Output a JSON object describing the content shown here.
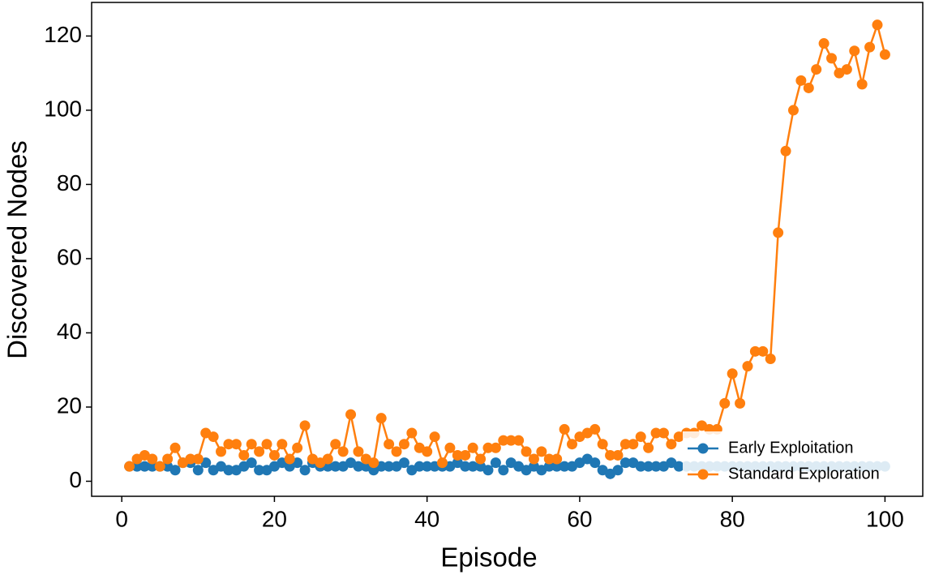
{
  "chart_data": {
    "type": "line",
    "x_label": "Episode",
    "y_label": "Discovered Nodes",
    "x": [
      1,
      2,
      3,
      4,
      5,
      6,
      7,
      8,
      9,
      10,
      11,
      12,
      13,
      14,
      15,
      16,
      17,
      18,
      19,
      20,
      21,
      22,
      23,
      24,
      25,
      26,
      27,
      28,
      29,
      30,
      31,
      32,
      33,
      34,
      35,
      36,
      37,
      38,
      39,
      40,
      41,
      42,
      43,
      44,
      45,
      46,
      47,
      48,
      49,
      50,
      51,
      52,
      53,
      54,
      55,
      56,
      57,
      58,
      59,
      60,
      61,
      62,
      63,
      64,
      65,
      66,
      67,
      68,
      69,
      70,
      71,
      72,
      73,
      74,
      75,
      76,
      77,
      78,
      79,
      80,
      81,
      82,
      83,
      84,
      85,
      86,
      87,
      88,
      89,
      90,
      91,
      92,
      93,
      94,
      95,
      96,
      97,
      98,
      99,
      100
    ],
    "series": [
      {
        "name": "Early Exploitation",
        "color": "#1f77b4",
        "values": [
          4,
          4,
          4,
          4,
          4,
          4,
          3,
          5,
          5,
          3,
          5,
          3,
          4,
          3,
          3,
          4,
          5,
          3,
          3,
          4,
          5,
          4,
          5,
          3,
          5,
          4,
          4,
          4,
          4,
          5,
          4,
          4,
          3,
          4,
          4,
          4,
          5,
          3,
          4,
          4,
          4,
          4,
          4,
          5,
          4,
          4,
          4,
          3,
          5,
          3,
          5,
          4,
          3,
          4,
          3,
          4,
          4,
          4,
          4,
          5,
          6,
          5,
          3,
          2,
          3,
          5,
          5,
          4,
          4,
          4,
          4,
          5,
          4,
          4,
          4,
          4,
          4,
          4,
          4,
          4,
          4,
          4,
          4,
          4,
          4,
          4,
          4,
          4,
          4,
          4,
          4,
          4,
          4,
          4,
          4,
          4,
          4,
          4,
          4,
          4
        ]
      },
      {
        "name": "Standard Exploration",
        "color": "#ff7f0e",
        "values": [
          4,
          6,
          7,
          6,
          4,
          6,
          9,
          5,
          6,
          6,
          13,
          12,
          8,
          10,
          10,
          7,
          10,
          8,
          10,
          7,
          10,
          6,
          9,
          15,
          6,
          5,
          6,
          10,
          8,
          18,
          8,
          6,
          5,
          17,
          10,
          8,
          10,
          13,
          9,
          8,
          12,
          5,
          9,
          7,
          7,
          9,
          6,
          9,
          9,
          11,
          11,
          11,
          8,
          6,
          8,
          6,
          6,
          14,
          10,
          12,
          13,
          14,
          10,
          7,
          7,
          10,
          10,
          12,
          9,
          13,
          13,
          10,
          12,
          13,
          13,
          15,
          14,
          14,
          21,
          29,
          21,
          31,
          35,
          35,
          33,
          67,
          89,
          100,
          108,
          106,
          111,
          118,
          114,
          110,
          111,
          116,
          107,
          117,
          123,
          115
        ]
      }
    ],
    "xlim": [
      -3.95,
      104.95
    ],
    "ylim": [
      -4.05,
      129.05
    ],
    "xticks": [
      0,
      20,
      40,
      60,
      80,
      100
    ],
    "yticks": [
      0,
      20,
      40,
      60,
      80,
      100,
      120
    ],
    "grid": false,
    "legend": "lower right"
  }
}
